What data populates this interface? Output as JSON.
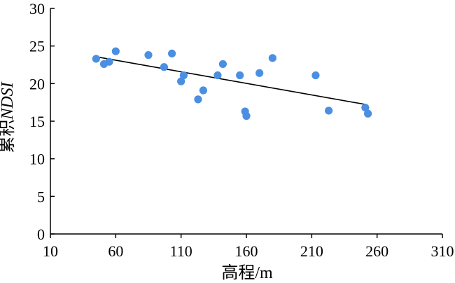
{
  "chart_data": {
    "type": "scatter",
    "title": "",
    "xlabel": "高程/m",
    "ylabel_prefix": "累积",
    "ylabel_italic": "NDSI",
    "xlim": [
      10,
      310
    ],
    "ylim": [
      0,
      30
    ],
    "xticks": [
      "10",
      "60",
      "110",
      "160",
      "210",
      "260",
      "310"
    ],
    "yticks": [
      "0",
      "5",
      "10",
      "15",
      "20",
      "25",
      "30"
    ],
    "grid": false,
    "legend": "none",
    "marker_color": "#4a8fe2",
    "points": [
      {
        "x": 45,
        "y": 23.3
      },
      {
        "x": 51,
        "y": 22.6
      },
      {
        "x": 55,
        "y": 22.9
      },
      {
        "x": 60,
        "y": 24.3
      },
      {
        "x": 85,
        "y": 23.8
      },
      {
        "x": 97,
        "y": 22.2
      },
      {
        "x": 103,
        "y": 24.0
      },
      {
        "x": 110,
        "y": 20.3
      },
      {
        "x": 112,
        "y": 21.1
      },
      {
        "x": 123,
        "y": 17.9
      },
      {
        "x": 127,
        "y": 19.1
      },
      {
        "x": 138,
        "y": 21.1
      },
      {
        "x": 142,
        "y": 22.6
      },
      {
        "x": 155,
        "y": 21.1
      },
      {
        "x": 159,
        "y": 16.3
      },
      {
        "x": 160,
        "y": 15.7
      },
      {
        "x": 170,
        "y": 21.4
      },
      {
        "x": 180,
        "y": 23.4
      },
      {
        "x": 213,
        "y": 21.1
      },
      {
        "x": 223,
        "y": 16.4
      },
      {
        "x": 251,
        "y": 16.8
      },
      {
        "x": 253,
        "y": 16.0
      }
    ],
    "trendline": {
      "x": [
        44,
        252
      ],
      "y": [
        23.6,
        17.2
      ]
    }
  }
}
